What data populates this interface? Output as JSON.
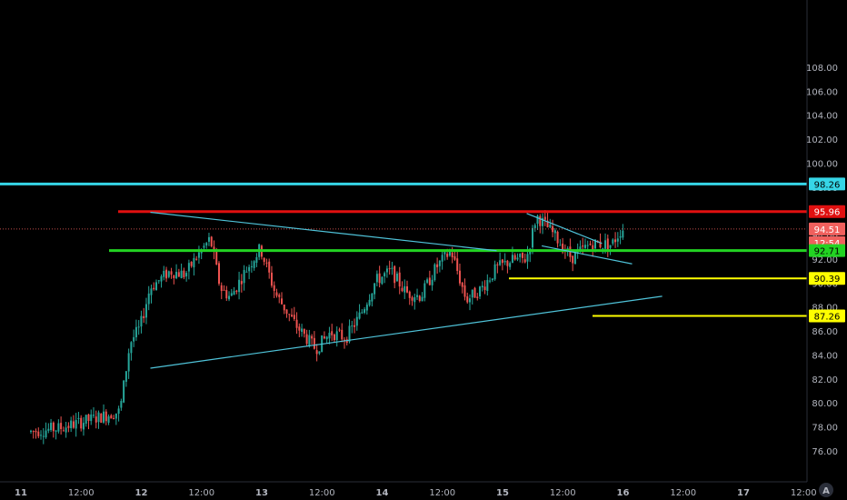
{
  "colors": {
    "background": "#000000",
    "up_candle": "#26a69a",
    "down_candle": "#ef5350",
    "axis_text": "#b2b5be",
    "trendline": "#4fc3d9",
    "resistance": "#e01010",
    "support_green": "#22d322",
    "level_cyan": "#36d6e7",
    "level_yellow": "#ffff00",
    "last_price": "#f0605d"
  },
  "price_axis": {
    "ticks": [
      "76.00",
      "78.00",
      "80.00",
      "82.00",
      "84.00",
      "86.00",
      "88.00",
      "90.00",
      "92.00",
      "94.00",
      "96.00",
      "98.00",
      "100.00",
      "102.00",
      "104.00",
      "106.00",
      "108.00"
    ]
  },
  "time_axis": {
    "labels": [
      "11",
      "12:00",
      "12",
      "12:00",
      "13",
      "12:00",
      "14",
      "12:00",
      "15",
      "12:00",
      "16",
      "12:00",
      "17",
      "12:00"
    ]
  },
  "badges": {
    "cyan_level": "98.26",
    "red_level": "95.96",
    "last_price": "94.51",
    "countdown": "12:54",
    "green_level": "92.71",
    "yellow_level_1": "90.39",
    "yellow_level_2": "87.26"
  },
  "logo_text": "A",
  "chart_data": {
    "type": "candlestick",
    "title": "",
    "xlabel": "",
    "ylabel": "",
    "ylim": [
      74.5,
      109.0
    ],
    "x_range": [
      "Day 11 00:00",
      "Day 18 00:00"
    ],
    "grid": false,
    "horizontal_levels": [
      {
        "price": 98.26,
        "color": "cyan",
        "label": "98.26"
      },
      {
        "price": 95.96,
        "color": "red",
        "label": "95.96"
      },
      {
        "price": 92.71,
        "color": "green",
        "label": "92.71"
      },
      {
        "price": 90.39,
        "color": "yellow",
        "label": "90.39"
      },
      {
        "price": 87.26,
        "color": "yellow",
        "label": "87.26"
      }
    ],
    "last_price": 94.51,
    "countdown": "12:54",
    "trendlines": [
      {
        "name": "descending",
        "from": [
          "Day 12 ~00:00",
          95.9
        ],
        "to": [
          "Day 14 ~21:00",
          92.7
        ]
      },
      {
        "name": "ascending",
        "from": [
          "Day 12 ~00:00",
          82.9
        ],
        "to": [
          "Day 16 ~06:00",
          88.9
        ]
      },
      {
        "name": "upper-right",
        "from": [
          "Day 15 ~03:00",
          95.8
        ],
        "to": [
          "Day 15 ~18:00",
          93.3
        ]
      },
      {
        "name": "lower-right",
        "from": [
          "Day 15 ~06:00",
          93.1
        ],
        "to": [
          "Day 16 ~00:00",
          91.6
        ]
      }
    ],
    "price_path": [
      [
        "Day 11 00:00",
        77.6
      ],
      [
        "Day 11 06:00",
        77.9
      ],
      [
        "Day 11 12:00",
        78.6
      ],
      [
        "Day 11 18:00",
        79.3
      ],
      [
        "Day 11 20:00",
        85.0
      ],
      [
        "Day 11 22:00",
        86.3
      ],
      [
        "Day 12 00:00",
        89.6
      ],
      [
        "Day 12 04:00",
        91.0
      ],
      [
        "Day 12 07:00",
        90.7
      ],
      [
        "Day 12 09:00",
        92.0
      ],
      [
        "Day 12 12:00",
        93.7
      ],
      [
        "Day 12 14:00",
        89.6
      ],
      [
        "Day 12 16:00",
        88.8
      ],
      [
        "Day 12 19:00",
        91.0
      ],
      [
        "Day 12 22:00",
        92.9
      ],
      [
        "Day 13 01:00",
        89.1
      ],
      [
        "Day 13 05:00",
        86.5
      ],
      [
        "Day 13 09:00",
        84.5
      ],
      [
        "Day 13 12:00",
        85.9
      ],
      [
        "Day 13 15:00",
        85.4
      ],
      [
        "Day 13 18:00",
        87.4
      ],
      [
        "Day 13 21:00",
        90.2
      ],
      [
        "Day 14 00:00",
        91.0
      ],
      [
        "Day 14 03:00",
        89.2
      ],
      [
        "Day 14 06:00",
        88.9
      ],
      [
        "Day 14 09:00",
        91.3
      ],
      [
        "Day 14 12:00",
        92.7
      ],
      [
        "Day 14 15:00",
        88.6
      ],
      [
        "Day 14 18:00",
        89.5
      ],
      [
        "Day 14 21:00",
        91.2
      ],
      [
        "Day 15 00:00",
        91.9
      ],
      [
        "Day 15 03:00",
        92.0
      ],
      [
        "Day 15 05:00",
        95.6
      ],
      [
        "Day 15 08:00",
        94.3
      ],
      [
        "Day 15 12:00",
        92.1
      ],
      [
        "Day 15 16:00",
        93.3
      ],
      [
        "Day 15 20:00",
        93.2
      ],
      [
        "Day 15 22:00",
        94.5
      ]
    ]
  }
}
